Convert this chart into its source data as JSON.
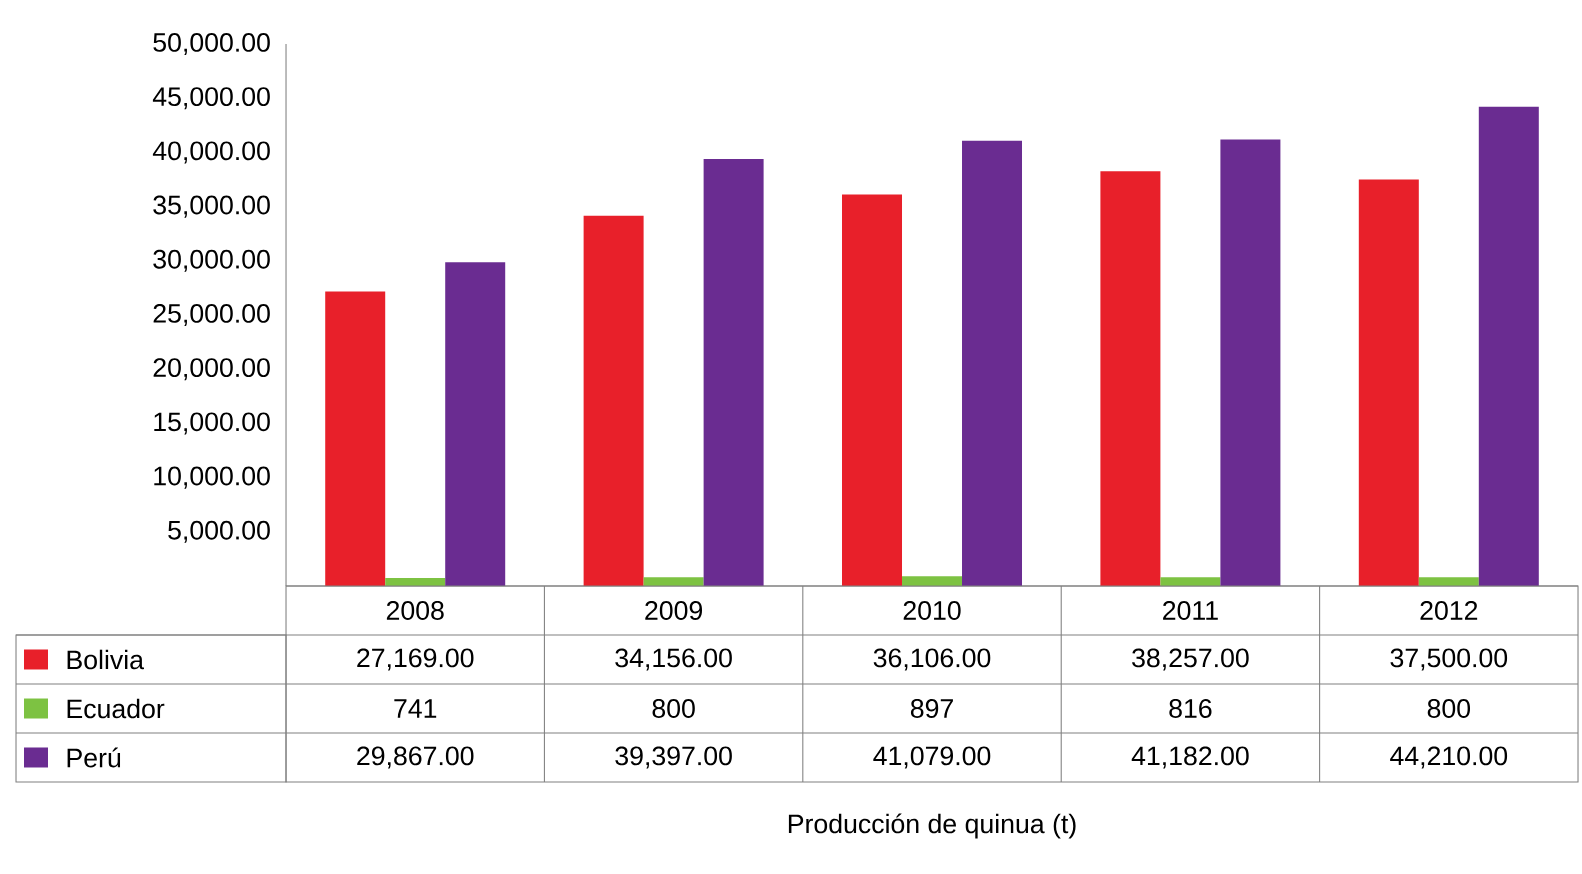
{
  "chart_data": {
    "type": "bar",
    "annotations": [
      "Producción de quinua (t)"
    ],
    "categories": [
      "2008",
      "2009",
      "2010",
      "2011",
      "2012"
    ],
    "series": [
      {
        "name": "Bolivia",
        "color": "#e8202a",
        "values": [
          27169,
          34156,
          36106,
          38257,
          37500
        ],
        "value_labels": [
          "27,169.00",
          "34,156.00",
          "36,106.00",
          "38,257.00",
          "37,500.00"
        ]
      },
      {
        "name": "Ecuador",
        "color": "#7dc242",
        "values": [
          741,
          800,
          897,
          816,
          800
        ],
        "value_labels": [
          "741",
          "800",
          "897",
          "816",
          "800"
        ]
      },
      {
        "name": "Perú",
        "color": "#6a2c91",
        "values": [
          29867,
          39397,
          41079,
          41182,
          44210
        ],
        "value_labels": [
          "29,867.00",
          "39,397.00",
          "41,079.00",
          "41,182.00",
          "44,210.00"
        ]
      }
    ],
    "ylim": [
      0,
      50000
    ],
    "yticks": [
      {
        "value": 5000,
        "label": "5,000.00"
      },
      {
        "value": 10000,
        "label": "10,000.00"
      },
      {
        "value": 15000,
        "label": "15,000.00"
      },
      {
        "value": 20000,
        "label": "20,000.00"
      },
      {
        "value": 25000,
        "label": "25,000.00"
      },
      {
        "value": 30000,
        "label": "30,000.00"
      },
      {
        "value": 35000,
        "label": "35,000.00"
      },
      {
        "value": 40000,
        "label": "40,000.00"
      },
      {
        "value": 45000,
        "label": "45,000.00"
      },
      {
        "value": 50000,
        "label": "50,000.00"
      }
    ],
    "legend": "bottom",
    "grid": false
  }
}
